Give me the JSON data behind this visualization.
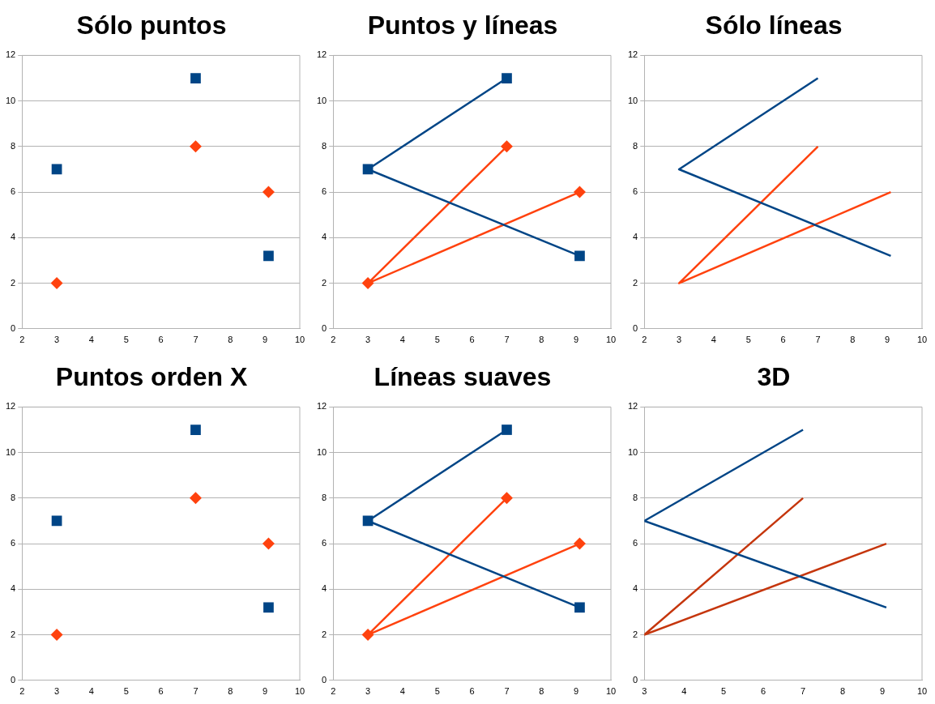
{
  "chart_data": [
    {
      "type": "scatter",
      "title": "Sólo puntos",
      "xlim": [
        2,
        10
      ],
      "xticks": [
        2,
        3,
        4,
        5,
        6,
        7,
        8,
        9,
        10
      ],
      "ylim": [
        0,
        12
      ],
      "yticks": [
        0,
        2,
        4,
        6,
        8,
        10,
        12
      ],
      "grid": "y",
      "legend": false,
      "series": [
        {
          "color": "#004586",
          "marker": "square",
          "x": [
            7,
            3,
            9.1
          ],
          "values": [
            11,
            7,
            3.2
          ]
        },
        {
          "color": "#ff420e",
          "marker": "diamond",
          "x": [
            7,
            3,
            9.1
          ],
          "values": [
            8,
            2,
            6
          ]
        }
      ]
    },
    {
      "type": "line",
      "title": "Puntos y líneas",
      "xlim": [
        2,
        10
      ],
      "xticks": [
        2,
        3,
        4,
        5,
        6,
        7,
        8,
        9,
        10
      ],
      "ylim": [
        0,
        12
      ],
      "yticks": [
        0,
        2,
        4,
        6,
        8,
        10,
        12
      ],
      "grid": "y",
      "legend": false,
      "series": [
        {
          "color": "#004586",
          "marker": "square",
          "x": [
            7,
            3,
            9.1
          ],
          "values": [
            11,
            7,
            3.2
          ]
        },
        {
          "color": "#ff420e",
          "marker": "diamond",
          "x": [
            7,
            3,
            9.1
          ],
          "values": [
            8,
            2,
            6
          ]
        }
      ]
    },
    {
      "type": "line",
      "title": "Sólo líneas",
      "xlim": [
        2,
        10
      ],
      "xticks": [
        2,
        3,
        4,
        5,
        6,
        7,
        8,
        9,
        10
      ],
      "ylim": [
        0,
        12
      ],
      "yticks": [
        0,
        2,
        4,
        6,
        8,
        10,
        12
      ],
      "grid": "y",
      "legend": false,
      "marker": "none",
      "series": [
        {
          "color": "#004586",
          "x": [
            7,
            3,
            9.1
          ],
          "values": [
            11,
            7,
            3.2
          ]
        },
        {
          "color": "#ff420e",
          "x": [
            7,
            3,
            9.1
          ],
          "values": [
            8,
            2,
            6
          ]
        }
      ]
    },
    {
      "type": "scatter",
      "title": "Puntos orden X",
      "xlim": [
        2,
        10
      ],
      "xticks": [
        2,
        3,
        4,
        5,
        6,
        7,
        8,
        9,
        10
      ],
      "ylim": [
        0,
        12
      ],
      "yticks": [
        0,
        2,
        4,
        6,
        8,
        10,
        12
      ],
      "grid": "y",
      "legend": false,
      "series": [
        {
          "color": "#004586",
          "marker": "square",
          "x": [
            3,
            7,
            9.1
          ],
          "values": [
            7,
            11,
            3.2
          ]
        },
        {
          "color": "#ff420e",
          "marker": "diamond",
          "x": [
            3,
            7,
            9.1
          ],
          "values": [
            2,
            8,
            6
          ]
        }
      ]
    },
    {
      "type": "line",
      "title": "Líneas suaves",
      "xlim": [
        2,
        10
      ],
      "xticks": [
        2,
        3,
        4,
        5,
        6,
        7,
        8,
        9,
        10
      ],
      "ylim": [
        0,
        12
      ],
      "yticks": [
        0,
        2,
        4,
        6,
        8,
        10,
        12
      ],
      "grid": "y",
      "legend": false,
      "series": [
        {
          "color": "#004586",
          "marker": "square",
          "x": [
            7,
            3,
            9.1
          ],
          "values": [
            11,
            7,
            3.2
          ]
        },
        {
          "color": "#ff420e",
          "marker": "diamond",
          "x": [
            7,
            3,
            9.1
          ],
          "values": [
            8,
            2,
            6
          ]
        }
      ]
    },
    {
      "type": "line",
      "title": "3D",
      "xlim": [
        3,
        10
      ],
      "xticks": [
        3,
        4,
        5,
        6,
        7,
        8,
        9,
        10
      ],
      "ylim": [
        0,
        12
      ],
      "yticks": [
        0,
        2,
        4,
        6,
        8,
        10,
        12
      ],
      "grid": "y",
      "legend": false,
      "marker": "none",
      "series": [
        {
          "color": "#004586",
          "x": [
            7,
            3,
            9.1
          ],
          "values": [
            11,
            7,
            3.2
          ]
        },
        {
          "color": "#c5360d",
          "x": [
            7,
            3,
            9.1
          ],
          "values": [
            8,
            2,
            6
          ]
        }
      ]
    }
  ]
}
